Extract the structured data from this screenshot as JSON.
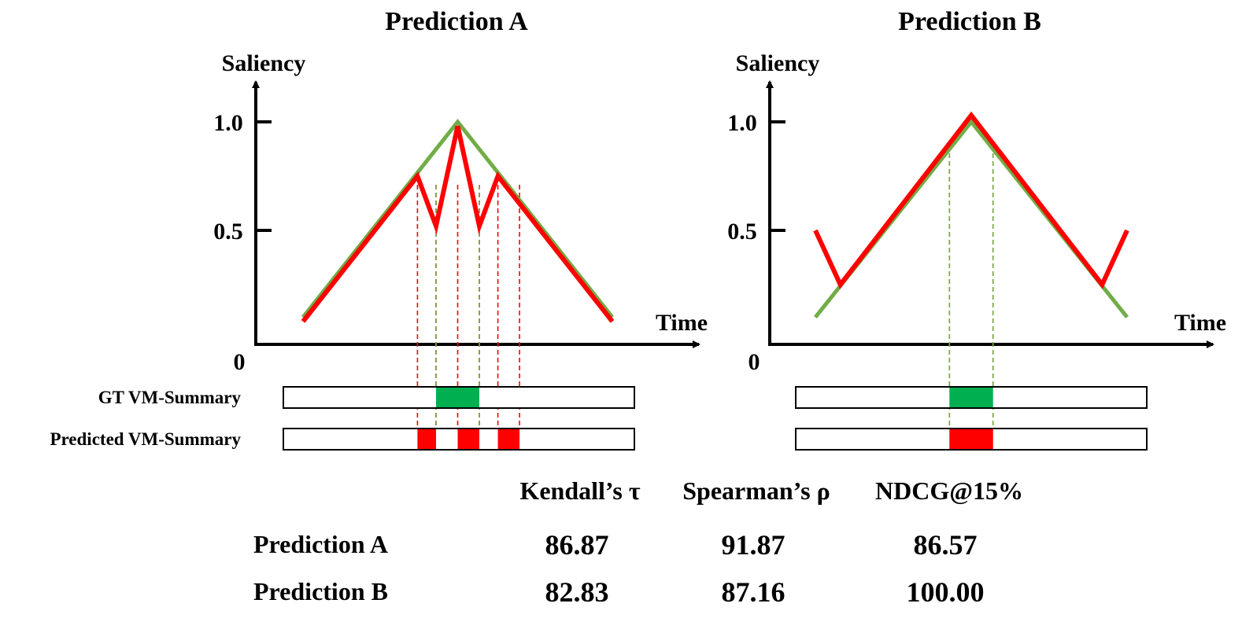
{
  "panels": [
    {
      "title": "Prediction A",
      "y_axis_label": "Saliency",
      "x_axis_label": "Time",
      "origin_label": "0",
      "y_ticks": [
        "1.0",
        "0.5"
      ],
      "gt_bar_label": "GT VM-Summary",
      "pred_bar_label": "Predicted VM-Summary",
      "gt_curve": [
        [
          0,
          0.1
        ],
        [
          0.5,
          1.0
        ],
        [
          1,
          0.1
        ]
      ],
      "pred_curve": [
        [
          0,
          0.08
        ],
        [
          0.37,
          0.75
        ],
        [
          0.43,
          0.52
        ],
        [
          0.5,
          0.98
        ],
        [
          0.57,
          0.52
        ],
        [
          0.63,
          0.75
        ],
        [
          1,
          0.08
        ]
      ],
      "gt_segments": [
        [
          0.43,
          0.57
        ]
      ],
      "pred_segments": [
        [
          0.37,
          0.43
        ],
        [
          0.5,
          0.57
        ],
        [
          0.63,
          0.7
        ]
      ],
      "red_guides": [
        0.37,
        0.43,
        0.5,
        0.57,
        0.63,
        0.7
      ],
      "green_guides": [
        0.43,
        0.57
      ]
    },
    {
      "title": "Prediction B",
      "y_axis_label": "Saliency",
      "x_axis_label": "Time",
      "origin_label": "0",
      "y_ticks": [
        "1.0",
        "0.5"
      ],
      "gt_curve": [
        [
          0,
          0.1
        ],
        [
          0.5,
          1.0
        ],
        [
          1,
          0.1
        ]
      ],
      "pred_curve": [
        [
          0,
          0.5
        ],
        [
          0.08,
          0.25
        ],
        [
          0.5,
          1.03
        ],
        [
          0.92,
          0.25
        ],
        [
          1,
          0.5
        ]
      ],
      "gt_segments": [
        [
          0.43,
          0.57
        ]
      ],
      "pred_segments": [
        [
          0.43,
          0.57
        ]
      ],
      "red_guides": [
        0.43,
        0.57
      ],
      "green_guides": [
        0.43,
        0.57
      ]
    }
  ],
  "metrics_table": {
    "headers": [
      "Kendall’s τ",
      "Spearman’s ρ",
      "NDCG@15%"
    ],
    "rows": [
      {
        "label": "Prediction A",
        "values": [
          "86.87",
          "91.87",
          "86.57"
        ],
        "colors": [
          "#ff0000",
          "#ff0000",
          "#00b050"
        ],
        "bold": [
          true,
          true,
          false
        ]
      },
      {
        "label": "Prediction B",
        "values": [
          "82.83",
          "87.16",
          "100.00"
        ],
        "colors": [
          "#ff0000",
          "#ff0000",
          "#00b050"
        ],
        "bold": [
          false,
          false,
          true
        ]
      }
    ]
  },
  "colors": {
    "gt": "#70ad47",
    "pred": "#ff0000",
    "gt_fill": "#00b050",
    "axis": "#000000"
  }
}
